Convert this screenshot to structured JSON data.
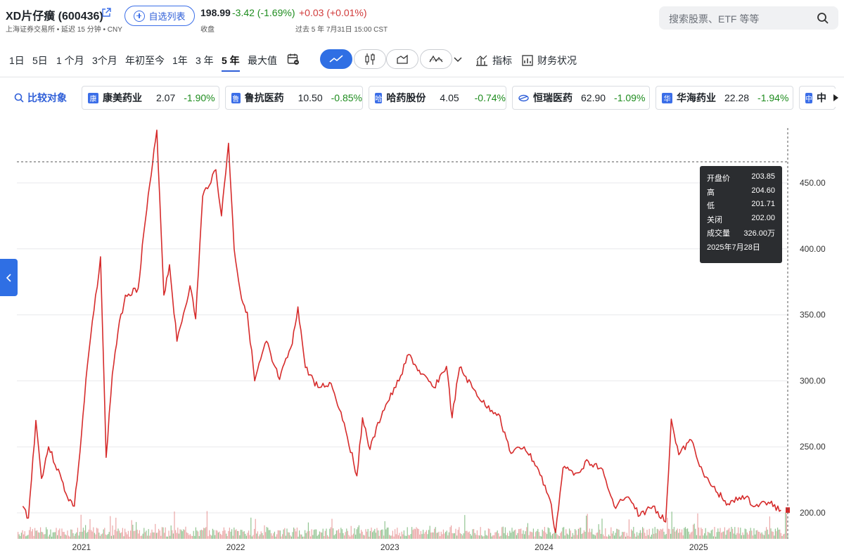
{
  "header": {
    "title": "XD片仔癀 (600436)",
    "subtitle": "上海证券交易所 • 延迟 15 分钟 • CNY",
    "watchlist_label": "自选列表",
    "price": "198.99",
    "change": "-3.42 (-1.69%)",
    "after_hours_change": "+0.03 (+0.01%)",
    "price_label": "收盘",
    "after_hours_label": "过去 5 年 7月31日 15:00 CST",
    "search_placeholder": "搜索股票、ETF 等等"
  },
  "toolbar": {
    "ranges": [
      "1日",
      "5日",
      "1 个月",
      "3个月",
      "年初至今",
      "1年",
      "3 年",
      "5 年",
      "最大值"
    ],
    "active_range": "5 年",
    "chart_types": [
      "line-chart-icon",
      "candlestick-icon",
      "area-chart-icon",
      "baseline-chart-icon"
    ],
    "indicators_label": "指标",
    "financials_label": "财务状况"
  },
  "compare": {
    "label": "比较对象",
    "items": [
      {
        "logo": "康",
        "name": "康美药业",
        "price": "2.07",
        "change": "-1.90%"
      },
      {
        "logo": "鲁",
        "name": "鲁抗医药",
        "price": "10.50",
        "change": "-0.85%"
      },
      {
        "logo": "哈",
        "name": "哈药股份",
        "price": "4.05",
        "change": "-0.74%"
      },
      {
        "logo": "",
        "name": "恒瑞医药",
        "price": "62.90",
        "change": "-1.09%"
      },
      {
        "logo": "华",
        "name": "华海药业",
        "price": "22.28",
        "change": "-1.94%"
      },
      {
        "logo": "中",
        "name": "中",
        "price": "",
        "change": ""
      }
    ]
  },
  "tooltip": {
    "open_label": "开盘价",
    "open": "203.85",
    "high_label": "高",
    "high": "204.60",
    "low_label": "低",
    "low": "201.71",
    "close_label": "关闭",
    "close": "202.00",
    "volume_label": "成交量",
    "volume": "326.00万",
    "date": "2025年7月28日"
  },
  "colors": {
    "line": "#d62b2b",
    "accent": "#2f6fe4",
    "up": "#1e8c1e",
    "down": "#d13b3b"
  },
  "chart_data": {
    "type": "line",
    "x_axis_labels": [
      "2021",
      "2022",
      "2023",
      "2024",
      "2025"
    ],
    "y_axis_labels": [
      "450.00",
      "400.00",
      "350.00",
      "300.00",
      "250.00",
      "200.00"
    ],
    "ylim": [
      180,
      490
    ],
    "reference_line": 466,
    "series": [
      {
        "x": [
          "2020-08",
          "2020-08",
          "2020-09",
          "2020-09",
          "2020-10",
          "2020-11",
          "2020-11",
          "2020-12",
          "2020-12",
          "2021-01",
          "2021-02",
          "2021-02",
          "2021-03",
          "2021-03",
          "2021-04",
          "2021-05",
          "2021-05",
          "2021-06",
          "2021-06",
          "2021-07",
          "2021-07",
          "2021-08",
          "2021-09",
          "2021-09",
          "2021-10",
          "2021-11",
          "2021-11",
          "2021-12",
          "2021-12",
          "2022-01",
          "2022-01",
          "2022-02",
          "2022-03",
          "2022-03",
          "2022-04",
          "2022-05",
          "2022-05",
          "2022-06",
          "2022-07",
          "2022-08",
          "2022-09",
          "2022-10",
          "2022-10",
          "2022-11",
          "2022-12",
          "2023-01",
          "2023-02",
          "2023-03",
          "2023-04",
          "2023-05",
          "2023-05",
          "2023-06",
          "2023-07",
          "2023-08",
          "2023-09",
          "2023-10",
          "2023-11",
          "2023-12",
          "2024-01",
          "2024-01",
          "2024-02",
          "2024-03",
          "2024-04",
          "2024-05",
          "2024-06",
          "2024-07",
          "2024-08",
          "2024-09",
          "2024-10",
          "2024-10",
          "2024-11",
          "2024-12",
          "2025-01",
          "2025-02",
          "2025-03",
          "2025-04",
          "2025-05",
          "2025-06",
          "2025-07"
        ],
        "y": [
          205,
          196,
          270,
          226,
          250,
          225,
          212,
          205,
          246,
          312,
          394,
          242,
          305,
          337,
          365,
          370,
          412,
          456,
          490,
          365,
          388,
          330,
          372,
          347,
          440,
          460,
          425,
          480,
          400,
          362,
          352,
          300,
          330,
          315,
          301,
          328,
          356,
          310,
          295,
          298,
          268,
          228,
          272,
          248,
          277,
          295,
          320,
          305,
          295,
          311,
          272,
          310,
          295,
          281,
          275,
          245,
          250,
          235,
          210,
          185,
          234,
          230,
          239,
          234,
          205,
          212,
          198,
          205,
          193,
          271,
          244,
          255,
          227,
          215,
          206,
          213,
          205,
          208,
          202
        ],
        "name": ""
      }
    ],
    "volume": {
      "note": "",
      "colors": [
        "#6db06d",
        "#e48a8a"
      ]
    }
  }
}
